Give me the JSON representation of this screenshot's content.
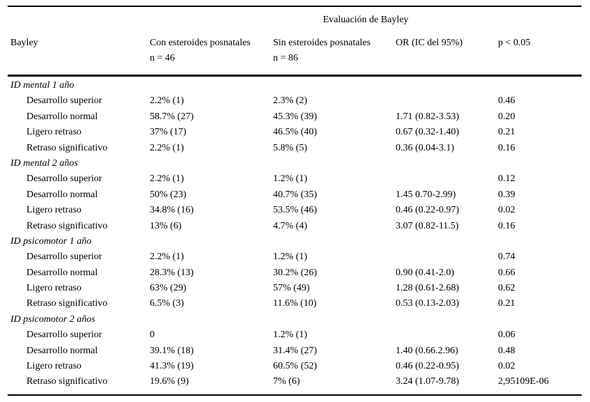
{
  "table": {
    "title": "Evaluación de Bayley",
    "columns": {
      "col1": "Bayley",
      "col2_line1": "Con esteroides posnatales",
      "col2_line2": "n = 46",
      "col3_line1": "Sin esteroides posnatales",
      "col3_line2": "n = 86",
      "col4": "OR (IC del 95%)",
      "col5": "p < 0.05"
    },
    "sections": [
      {
        "header": "ID mental 1 año",
        "rows": [
          [
            "Desarrollo superior",
            "2.2% (1)",
            "2.3% (2)",
            "",
            "0.46"
          ],
          [
            "Desarrollo normal",
            "58.7% (27)",
            "45.3% (39)",
            "1.71 (0.82-3.53)",
            "0.20"
          ],
          [
            "Ligero retraso",
            "37% (17)",
            "46.5% (40)",
            "0.67 (0.32-1.40)",
            "0.21"
          ],
          [
            "Retraso significativo",
            "2.2% (1)",
            "5.8% (5)",
            "0.36 (0.04-3.1)",
            "0.16"
          ]
        ]
      },
      {
        "header": "ID mental 2 años",
        "rows": [
          [
            "Desarrollo superior",
            "2.2% (1)",
            "1.2% (1)",
            "",
            "0.12"
          ],
          [
            "Desarrollo normal",
            "50% (23)",
            "40.7% (35)",
            "1.45 0.70-2.99)",
            "0.39"
          ],
          [
            "Ligero retraso",
            "34.8% (16)",
            "53.5% (46)",
            "0.46 (0.22-0.97)",
            "0.02"
          ],
          [
            "Retraso significativo",
            "13% (6)",
            "4.7% (4)",
            "3.07 (0.82-11.5)",
            "0.16"
          ]
        ]
      },
      {
        "header": "ID psicomotor 1 año",
        "rows": [
          [
            "Desarrollo superior",
            "2.2% (1)",
            "1.2% (1)",
            "",
            "0.74"
          ],
          [
            "Desarrollo normal",
            "28.3% (13)",
            "30.2% (26)",
            "0.90 (0.41-2.0)",
            "0.66"
          ],
          [
            "Ligero retraso",
            "63% (29)",
            "57% (49)",
            "1.28 (0.61-2.68)",
            "0.62"
          ],
          [
            "Retraso significativo",
            "6.5% (3)",
            "11.6% (10)",
            "0.53 (0.13-2.03)",
            "0.21"
          ]
        ]
      },
      {
        "header": "ID psicomotor 2 años",
        "rows": [
          [
            "Desarrollo superior",
            "0",
            "1.2% (1)",
            "",
            "0.06"
          ],
          [
            "Desarrollo normal",
            "39.1% (18)",
            "31.4% (27)",
            "1.40 (0.66.2.96)",
            "0.48"
          ],
          [
            "Ligero retraso",
            "41.3% (19)",
            "60.5% (52)",
            "0.46 (0.22-0.95)",
            "0.02"
          ],
          [
            "Retraso significativo",
            "19.6% (9)",
            "7% (6)",
            "3.24 (1.07-9.78)",
            "2,95109E-06"
          ]
        ]
      }
    ]
  }
}
